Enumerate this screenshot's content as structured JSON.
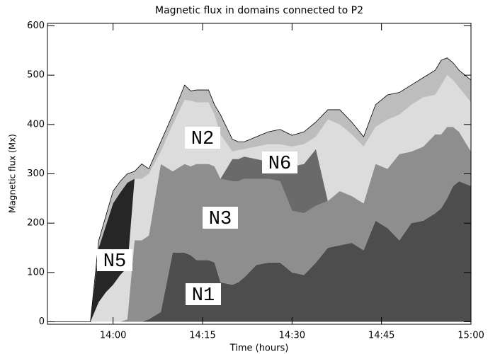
{
  "chart_data": {
    "type": "stacked-area",
    "title": "Magnetic flux in domains connected to P2",
    "x_label": "Time (hours)",
    "y_label": "Magnetic flux (Mx)",
    "x": [
      -11,
      -3.8,
      -2.4,
      -1.2,
      0,
      1.2,
      2.4,
      3.6,
      4.8,
      6,
      8,
      10,
      12,
      13,
      14,
      16,
      17,
      18,
      20,
      21,
      22,
      24,
      26,
      28,
      30,
      32,
      34,
      36,
      38,
      40,
      42,
      44,
      46,
      48,
      50,
      52,
      54,
      55,
      56,
      57,
      58,
      60
    ],
    "xlim": [
      -11,
      60
    ],
    "xticks": [
      {
        "value": 0,
        "label": "14:00"
      },
      {
        "value": 15,
        "label": "14:15"
      },
      {
        "value": 30,
        "label": "14:30"
      },
      {
        "value": 45,
        "label": "14:45"
      },
      {
        "value": 60,
        "label": "15:00"
      }
    ],
    "ylim": [
      -5,
      605
    ],
    "yticks": [
      0,
      100,
      200,
      300,
      400,
      500,
      600
    ],
    "series": [
      {
        "name": "N1",
        "color": "#4d4d4d",
        "values": [
          0,
          0,
          0,
          0,
          0,
          0,
          0,
          0,
          0,
          5,
          20,
          140,
          140,
          135,
          125,
          125,
          120,
          80,
          75,
          80,
          90,
          115,
          120,
          120,
          100,
          95,
          120,
          150,
          155,
          160,
          145,
          205,
          190,
          165,
          200,
          205,
          220,
          230,
          250,
          275,
          285,
          275
        ]
      },
      {
        "name": "N3",
        "color": "#8e8e8e",
        "values": [
          0,
          0,
          0,
          0,
          0,
          0,
          5,
          165,
          165,
          170,
          300,
          165,
          180,
          180,
          195,
          195,
          195,
          210,
          210,
          205,
          200,
          175,
          170,
          165,
          125,
          125,
          115,
          95,
          110,
          95,
          95,
          115,
          120,
          175,
          145,
          150,
          160,
          150,
          145,
          120,
          100,
          70
        ]
      },
      {
        "name": "N6",
        "color": "#6a6a6a",
        "values": [
          0,
          0,
          0,
          0,
          0,
          0,
          0,
          0,
          0,
          0,
          0,
          0,
          0,
          0,
          0,
          0,
          0,
          0,
          45,
          45,
          45,
          40,
          35,
          35,
          90,
          100,
          115,
          0,
          0,
          0,
          0,
          0,
          0,
          0,
          0,
          0,
          0,
          0,
          0,
          0,
          0,
          0
        ]
      },
      {
        "name": "N2",
        "color": "#dcdcdc",
        "values": [
          0,
          0,
          40,
          60,
          75,
          95,
          105,
          125,
          125,
          125,
          25,
          95,
          130,
          133,
          125,
          125,
          105,
          90,
          15,
          18,
          15,
          25,
          35,
          40,
          40,
          40,
          25,
          165,
          135,
          125,
          115,
          75,
          100,
          80,
          95,
          100,
          80,
          100,
          105,
          95,
          90,
          100
        ]
      },
      {
        "name": "N5",
        "color": "#262626",
        "values": [
          0,
          0,
          110,
          135,
          165,
          167,
          172,
          0,
          0,
          0,
          0,
          0,
          0,
          0,
          0,
          0,
          0,
          0,
          0,
          0,
          0,
          0,
          0,
          0,
          0,
          0,
          0,
          0,
          0,
          0,
          0,
          0,
          0,
          0,
          0,
          0,
          0,
          0,
          0,
          0,
          0,
          0
        ]
      },
      {
        "color": "#bdbdbd",
        "values": [
          0,
          0,
          15,
          20,
          25,
          23,
          18,
          15,
          30,
          10,
          20,
          20,
          30,
          20,
          25,
          25,
          20,
          40,
          25,
          17,
          15,
          20,
          25,
          30,
          23,
          25,
          30,
          20,
          30,
          25,
          20,
          45,
          50,
          45,
          40,
          40,
          50,
          50,
          35,
          35,
          35,
          45
        ]
      }
    ]
  }
}
